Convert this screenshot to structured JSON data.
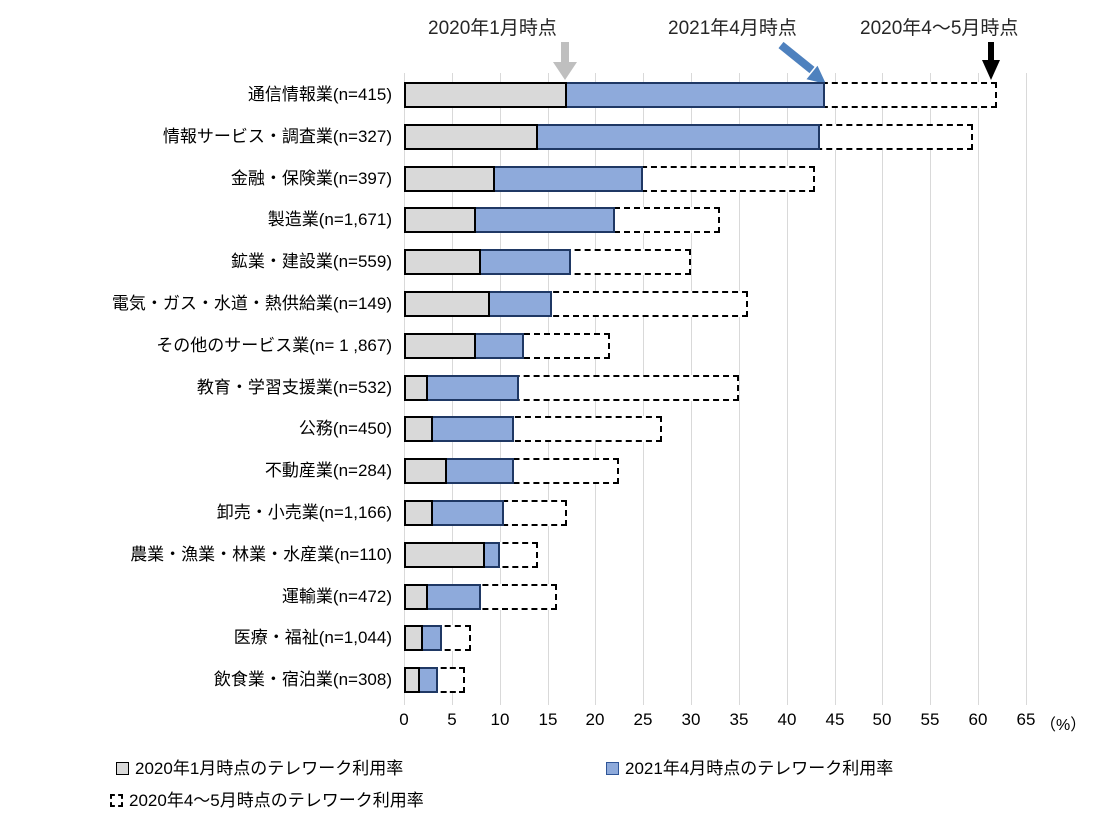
{
  "annotations": [
    {
      "label": "2020年1月時点",
      "arrow": "gray-down-arrow"
    },
    {
      "label": "2021年4月時点",
      "arrow": "blue-diagonal-arrow"
    },
    {
      "label": "2020年4～5月時点",
      "arrow": "black-down-arrow"
    }
  ],
  "axis": {
    "unit_label": "（%）",
    "ticks": [
      0,
      5,
      10,
      15,
      20,
      25,
      30,
      35,
      40,
      45,
      50,
      55,
      60,
      65
    ]
  },
  "colors": {
    "bar_gray_fill": "#d9d9d9",
    "bar_gray_border": "#000000",
    "bar_blue_fill": "#8eaadb",
    "bar_blue_border": "#1f3864",
    "bar_dash_border": "#000000",
    "gridline": "#d9d9d9",
    "arrow_gray": "#bfbfbf",
    "arrow_blue": "#4e81be",
    "arrow_black": "#000000"
  },
  "chart_data": {
    "type": "bar",
    "orientation": "horizontal",
    "title": "",
    "xlabel": "(%)",
    "ylabel": "",
    "xlim": [
      0,
      65
    ],
    "grid": true,
    "legend_position": "bottom",
    "categories": [
      "通信情報業(n=415)",
      "情報サービス・調査業(n=327)",
      "金融・保険業(n=397)",
      "製造業(n=1,671)",
      "鉱業・建設業(n=559)",
      "電気・ガス・水道・熱供給業(n=149)",
      "その他のサービス業(n= 1 ,867)",
      "教育・学習支援業(n=532)",
      "公務(n=450)",
      "不動産業(n=284)",
      "卸売・小売業(n=1,166)",
      "農業・漁業・林業・水産業(n=110)",
      "運輸業(n=472)",
      "医療・福祉(n=1,044)",
      "飲食業・宿泊業(n=308)"
    ],
    "series": [
      {
        "name": "2020年1月時点のテレワーク利用率",
        "style": "gray-solid",
        "values": [
          17.0,
          14.0,
          9.5,
          7.5,
          8.0,
          9.0,
          7.5,
          2.5,
          3.0,
          4.5,
          3.0,
          8.5,
          2.5,
          2.0,
          1.7
        ]
      },
      {
        "name": "2021年4月時点のテレワーク利用率",
        "style": "blue-solid",
        "values": [
          44.0,
          43.5,
          25.0,
          22.0,
          17.5,
          15.5,
          12.5,
          12.0,
          11.5,
          11.5,
          10.5,
          10.0,
          8.0,
          4.0,
          3.6
        ]
      },
      {
        "name": "2020年4～5月時点のテレワーク利用率",
        "style": "dashed-outline",
        "values": [
          62.0,
          59.5,
          43.0,
          33.0,
          30.0,
          36.0,
          21.5,
          35.0,
          27.0,
          22.5,
          17.0,
          14.0,
          16.0,
          7.0,
          6.4
        ]
      }
    ]
  }
}
